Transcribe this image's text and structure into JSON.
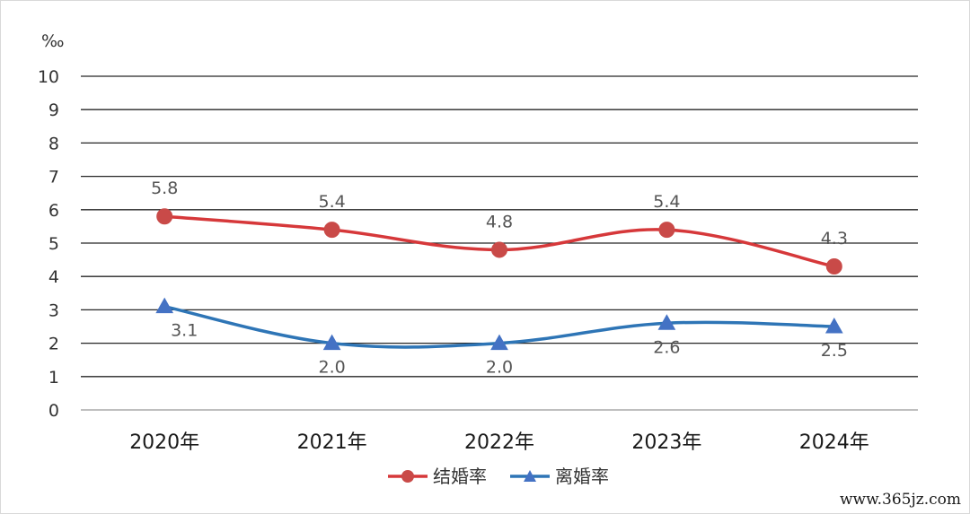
{
  "chart_data": {
    "type": "line",
    "unit": "‰",
    "categories": [
      "2020年",
      "2021年",
      "2022年",
      "2023年",
      "2024年"
    ],
    "ylim": [
      0,
      10
    ],
    "yticks": [
      0,
      1,
      2,
      3,
      4,
      5,
      6,
      7,
      8,
      9,
      10
    ],
    "grid": true,
    "legend": "bottom",
    "series": [
      {
        "name": "结婚率",
        "values": [
          5.8,
          5.4,
          4.8,
          5.4,
          4.3
        ],
        "labels": [
          "5.8",
          "5.4",
          "4.8",
          "5.4",
          "4.3"
        ],
        "color": "#d6383a",
        "marker": "circle"
      },
      {
        "name": "离婚率",
        "values": [
          3.1,
          2.0,
          2.0,
          2.6,
          2.5
        ],
        "labels": [
          "3.1",
          "2.0",
          "2.0",
          "2.6",
          "2.5"
        ],
        "color": "#2e75b6",
        "marker": "triangle"
      }
    ]
  },
  "watermark": "www.365jz.com"
}
